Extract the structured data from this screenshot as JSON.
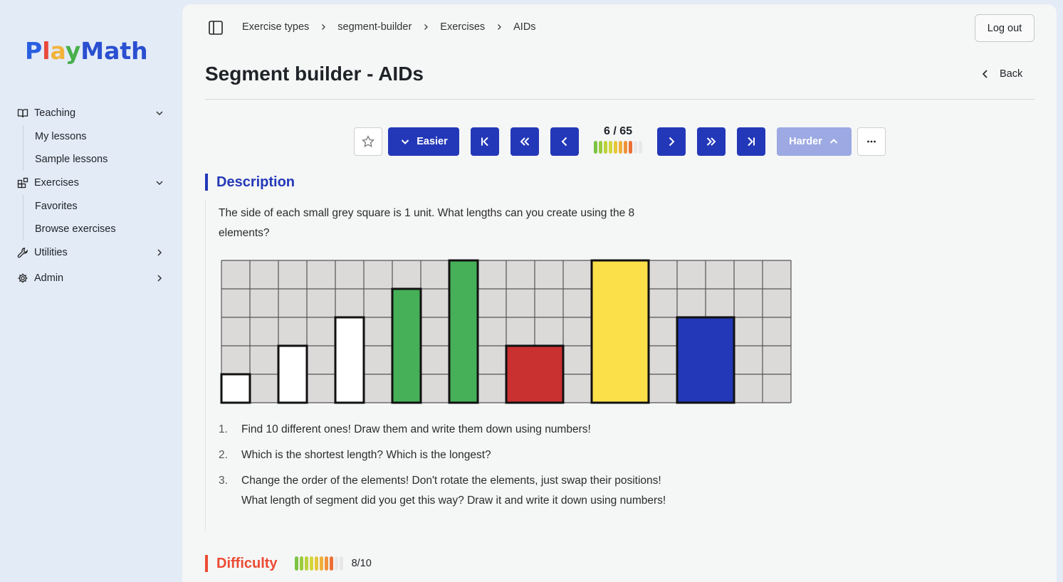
{
  "app": {
    "brand": "PlayMath"
  },
  "sidebar": {
    "groups": [
      {
        "label": "Teaching",
        "icon": "book-icon",
        "expanded": true,
        "items": [
          "My lessons",
          "Sample lessons"
        ]
      },
      {
        "label": "Exercises",
        "icon": "blocks-icon",
        "expanded": true,
        "items": [
          "Favorites",
          "Browse exercises"
        ]
      },
      {
        "label": "Utilities",
        "icon": "wrench-icon",
        "expanded": false,
        "items": []
      },
      {
        "label": "Admin",
        "icon": "gear-icon",
        "expanded": false,
        "items": []
      }
    ]
  },
  "header": {
    "breadcrumb": [
      "Exercise types",
      "segment-builder",
      "Exercises",
      "AIDs"
    ],
    "logout_label": "Log out",
    "title": "Segment builder - AIDs",
    "back_label": "Back"
  },
  "toolbar": {
    "easier_label": "Easier",
    "harder_label": "Harder",
    "counter": "6 / 65",
    "current": 6,
    "total": 65
  },
  "description": {
    "heading": "Description",
    "text": "The side of each small grey square is 1 unit. What lengths can you create using the 8 elements?",
    "questions": [
      {
        "num": "1.",
        "text": "Find 10 different ones! Draw them and write them down using numbers!"
      },
      {
        "num": "2.",
        "text": "Which is the shortest length? Which is the longest?"
      },
      {
        "num": "3.",
        "text": "Change the order of the elements! Don't rotate the elements, just swap their positions! What length of segment did you get this way? Draw it and write it down using numbers!"
      }
    ],
    "figure": {
      "grid_cols": 20,
      "grid_rows": 5,
      "elements": [
        {
          "col": 0,
          "width": 1,
          "height": 1,
          "color": "#ffffff"
        },
        {
          "col": 2,
          "width": 1,
          "height": 2,
          "color": "#ffffff"
        },
        {
          "col": 4,
          "width": 1,
          "height": 3,
          "color": "#ffffff"
        },
        {
          "col": 6,
          "width": 1,
          "height": 4,
          "color": "#45b058"
        },
        {
          "col": 8,
          "width": 1,
          "height": 5,
          "color": "#45b058"
        },
        {
          "col": 10,
          "width": 2,
          "height": 2,
          "color": "#c93030"
        },
        {
          "col": 13,
          "width": 2,
          "height": 5,
          "color": "#fbe04a"
        },
        {
          "col": 16,
          "width": 2,
          "height": 3,
          "color": "#2338b8"
        }
      ]
    }
  },
  "difficulty": {
    "heading": "Difficulty",
    "value": "8/10",
    "level": 8,
    "max": 10
  },
  "colors": {
    "accent_blue": "#2338b8",
    "harder_disabled": "#9ca9e3",
    "difficulty_red": "#ec4b34",
    "level_scale": [
      "#7cc444",
      "#9ccc3c",
      "#bcd23c",
      "#d4d63a",
      "#e6c63a",
      "#f0b03a",
      "#f0923a",
      "#ec6f36",
      "#e8502e",
      "#e03a2a"
    ],
    "level_empty": "#e8e8e8"
  }
}
